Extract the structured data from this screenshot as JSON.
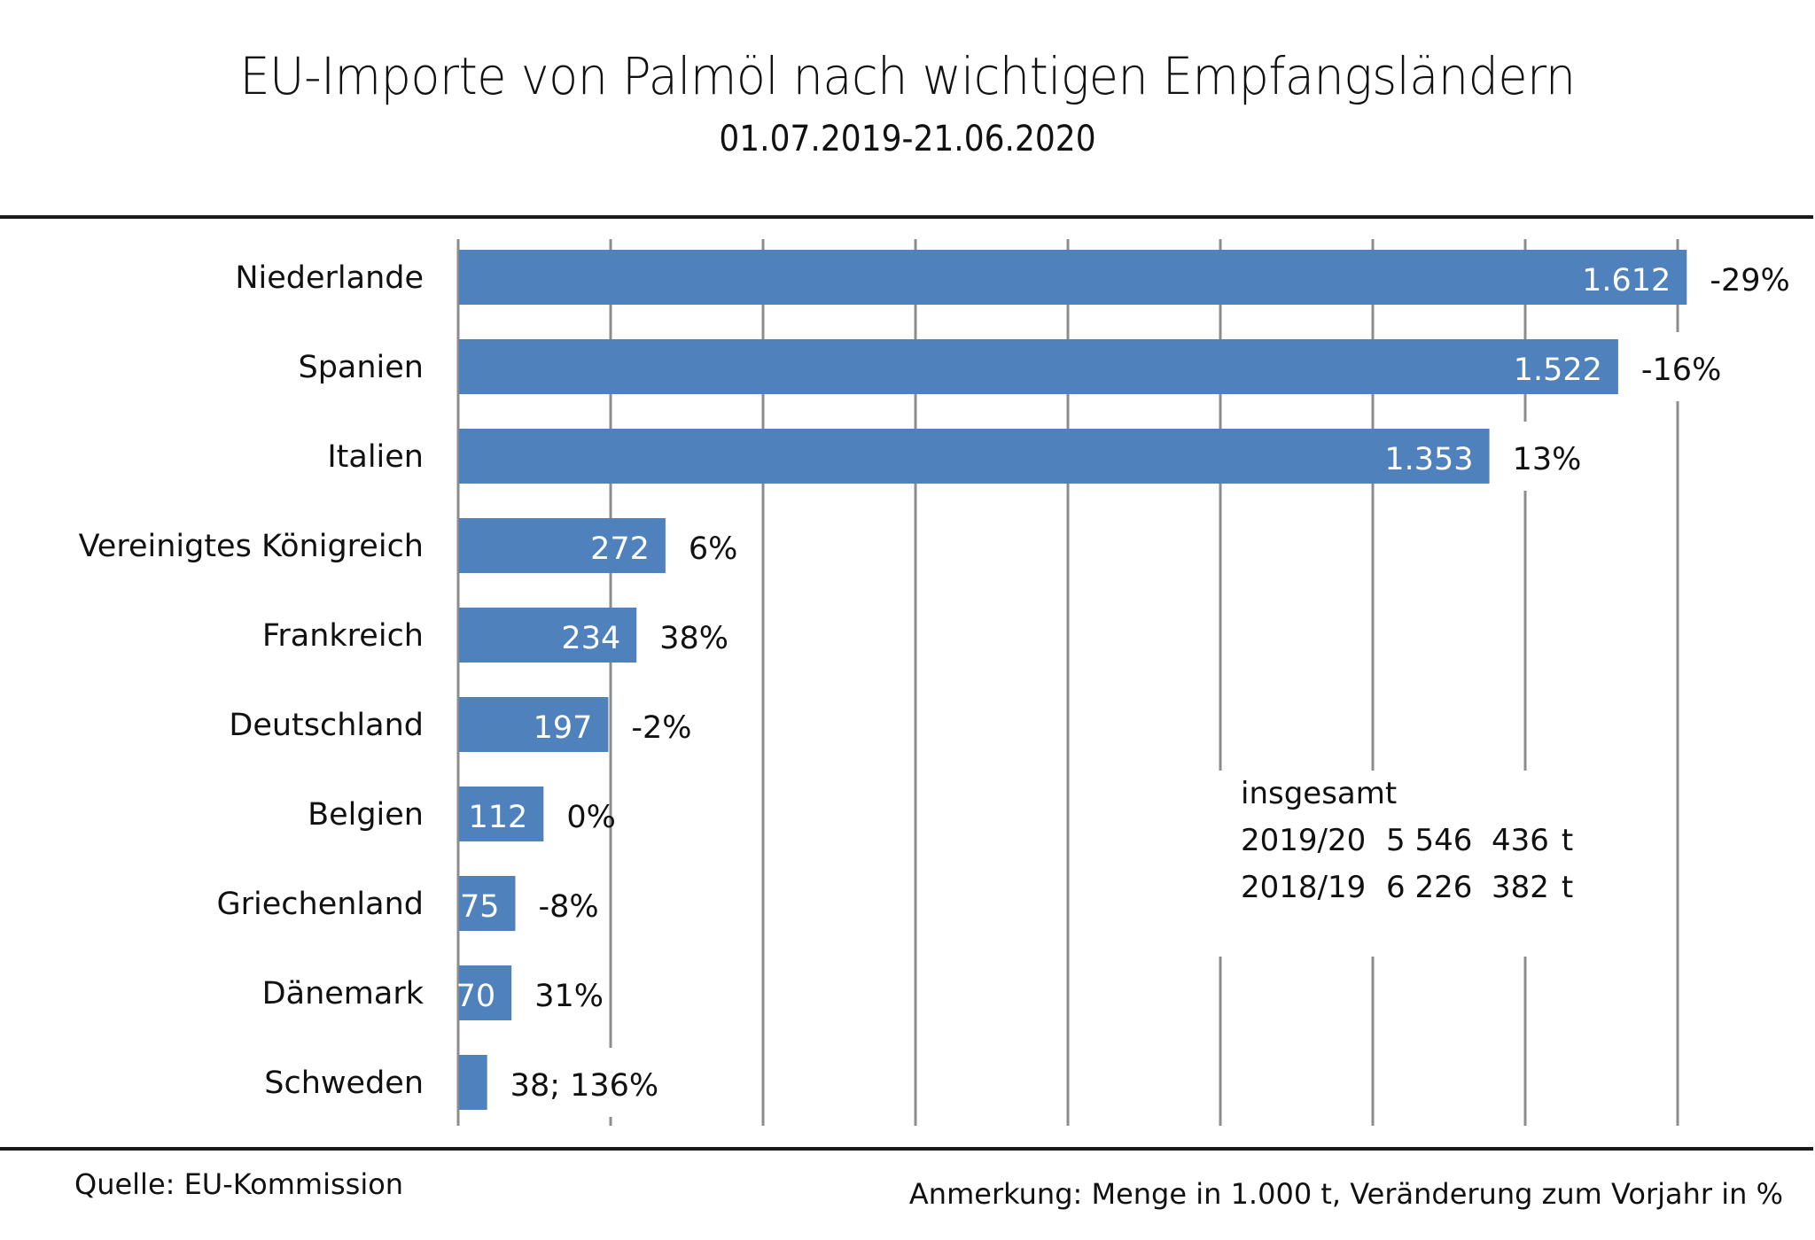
{
  "chart_data": {
    "type": "bar",
    "orientation": "horizontal",
    "title": "EU-Importe von Palmöl nach wichtigen Empfangsländern",
    "subtitle": "01.07.2019-21.06.2020",
    "xlabel": "",
    "ylabel": "",
    "unit": "1.000 t",
    "xlim": [
      0,
      1600
    ],
    "x_gridlines": [
      0,
      200,
      400,
      600,
      800,
      1000,
      1200,
      1400,
      1600
    ],
    "grid": true,
    "bar_color": "#4F81BD",
    "categories": [
      "Niederlande",
      "Spanien",
      "Italien",
      "Vereinigtes Königreich",
      "Frankreich",
      "Deutschland",
      "Belgien",
      "Griechenland",
      "Dänemark",
      "Schweden"
    ],
    "values": [
      1612,
      1522,
      1353,
      272,
      234,
      197,
      112,
      75,
      70,
      38
    ],
    "value_labels": [
      "1.612",
      "1.522",
      "1.353",
      "272",
      "234",
      "197",
      "112",
      "75",
      "70",
      ""
    ],
    "change_labels": [
      "-29%",
      "-16%",
      "13%",
      "6%",
      "38%",
      "-2%",
      "0%",
      "-8%",
      "31%",
      "38; 136%"
    ],
    "change_percent": [
      -29,
      -16,
      13,
      6,
      38,
      -2,
      0,
      -8,
      31,
      136
    ]
  },
  "totals": {
    "heading": "insgesamt",
    "rows": [
      {
        "period": "2019/20",
        "amount": "5 546  436",
        "unit": "t"
      },
      {
        "period": "2018/19",
        "amount": "6 226  382",
        "unit": "t"
      }
    ]
  },
  "footer": {
    "source": "Quelle: EU-Kommission",
    "note": "Anmerkung: Menge in 1.000 t, Veränderung zum Vorjahr in %"
  }
}
